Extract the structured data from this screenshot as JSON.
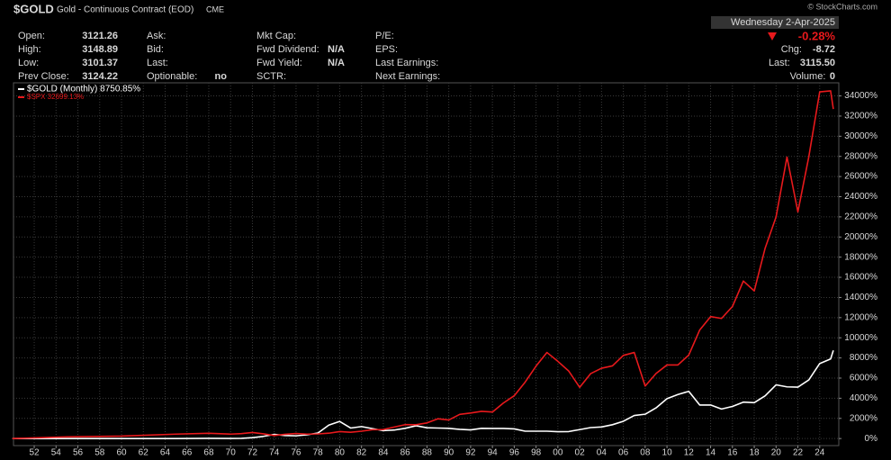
{
  "header": {
    "symbol": "$GOLD",
    "description": "Gold - Continuous Contract (EOD)",
    "exchange": "CME",
    "watermark": "© StockCharts.com",
    "date": "Wednesday  2-Apr-2025",
    "change_pct": "-0.28%",
    "columns": [
      [
        {
          "label": "Open:",
          "value": "3121.26"
        },
        {
          "label": "High:",
          "value": "3148.89"
        },
        {
          "label": "Low:",
          "value": "3101.37"
        },
        {
          "label": "Prev Close:",
          "value": "3124.22"
        }
      ],
      [
        {
          "label": "Ask:"
        },
        {
          "label": "Bid:"
        },
        {
          "label": "Last:"
        },
        {
          "label": "Optionable:",
          "value": "no"
        }
      ],
      [
        {
          "label": "Mkt Cap:"
        },
        {
          "label": "Fwd Dividend:",
          "value": "N/A"
        },
        {
          "label": "Fwd Yield:",
          "value": "N/A"
        },
        {
          "label": "SCTR:"
        }
      ],
      [
        {
          "label": "P/E:"
        },
        {
          "label": "EPS:"
        },
        {
          "label": "Last Earnings:"
        },
        {
          "label": "Next Earnings:"
        }
      ]
    ],
    "right": [
      {
        "label": "Chg:",
        "value": "-8.72"
      },
      {
        "label": "Last:",
        "value": "3115.50"
      },
      {
        "label": "Volume:",
        "value": "0"
      }
    ]
  },
  "chart_data": {
    "type": "line",
    "x": [
      1950,
      1955,
      1960,
      1965,
      1968,
      1970,
      1971,
      1972,
      1973,
      1974,
      1975,
      1976,
      1977,
      1978,
      1979,
      1980,
      1981,
      1982,
      1983,
      1984,
      1985,
      1986,
      1987,
      1988,
      1989,
      1990,
      1991,
      1992,
      1993,
      1994,
      1995,
      1996,
      1997,
      1998,
      1999,
      2000,
      2001,
      2002,
      2003,
      2004,
      2005,
      2006,
      2007,
      2008,
      2009,
      2010,
      2011,
      2012,
      2013,
      2014,
      2015,
      2016,
      2017,
      2018,
      2019,
      2020,
      2021,
      2022,
      2023,
      2024,
      2025,
      2025.25
    ],
    "series": [
      {
        "name": "$GOLD (Monthly) 8750.85%",
        "color": "#ffffff",
        "values": [
          0,
          0,
          0,
          0,
          20,
          5,
          20,
          86,
          214,
          414,
          300,
          271,
          371,
          543,
          1330,
          1700,
          1043,
          1186,
          986,
          786,
          843,
          1014,
          1271,
          1071,
          1043,
          1014,
          914,
          857,
          1014,
          1000,
          1000,
          957,
          729,
          729,
          729,
          677,
          694,
          886,
          1086,
          1151,
          1371,
          1714,
          2286,
          2414,
          3043,
          3957,
          4371,
          4686,
          3329,
          3329,
          2929,
          3186,
          3614,
          3557,
          4243,
          5329,
          5129,
          5100,
          5814,
          7443,
          7900,
          8750.85
        ]
      },
      {
        "name": "$SPX 32699.13%",
        "color": "#e8191c",
        "values": [
          0,
          165,
          240,
          440,
          520,
          440,
          490,
          600,
          470,
          300,
          420,
          500,
          440,
          460,
          530,
          690,
          620,
          730,
          880,
          890,
          1140,
          1380,
          1370,
          1550,
          1960,
          1840,
          2400,
          2530,
          2700,
          2630,
          3520,
          4250,
          5600,
          7190,
          8540,
          7660,
          6690,
          5080,
          6440,
          6980,
          7210,
          8250,
          8540,
          5210,
          6460,
          7300,
          7300,
          8290,
          10770,
          12100,
          11920,
          13100,
          15630,
          14650,
          18900,
          21990,
          27930,
          22490,
          27960,
          34400,
          34500,
          32699.13
        ]
      }
    ],
    "xlim": [
      1950.1,
      2025.75
    ],
    "xticks": [
      {
        "value": 1952,
        "label": "52"
      },
      {
        "value": 1954,
        "label": "54"
      },
      {
        "value": 1956,
        "label": "56"
      },
      {
        "value": 1958,
        "label": "58"
      },
      {
        "value": 1960,
        "label": "60"
      },
      {
        "value": 1962,
        "label": "62"
      },
      {
        "value": 1964,
        "label": "64"
      },
      {
        "value": 1966,
        "label": "66"
      },
      {
        "value": 1968,
        "label": "68"
      },
      {
        "value": 1970,
        "label": "70"
      },
      {
        "value": 1972,
        "label": "72"
      },
      {
        "value": 1974,
        "label": "74"
      },
      {
        "value": 1976,
        "label": "76"
      },
      {
        "value": 1978,
        "label": "78"
      },
      {
        "value": 1980,
        "label": "80"
      },
      {
        "value": 1982,
        "label": "82"
      },
      {
        "value": 1984,
        "label": "84"
      },
      {
        "value": 1986,
        "label": "86"
      },
      {
        "value": 1988,
        "label": "88"
      },
      {
        "value": 1990,
        "label": "90"
      },
      {
        "value": 1992,
        "label": "92"
      },
      {
        "value": 1994,
        "label": "94"
      },
      {
        "value": 1996,
        "label": "96"
      },
      {
        "value": 1998,
        "label": "98"
      },
      {
        "value": 2000,
        "label": "00"
      },
      {
        "value": 2002,
        "label": "02"
      },
      {
        "value": 2004,
        "label": "04"
      },
      {
        "value": 2006,
        "label": "06"
      },
      {
        "value": 2008,
        "label": "08"
      },
      {
        "value": 2010,
        "label": "10"
      },
      {
        "value": 2012,
        "label": "12"
      },
      {
        "value": 2014,
        "label": "14"
      },
      {
        "value": 2016,
        "label": "16"
      },
      {
        "value": 2018,
        "label": "18"
      },
      {
        "value": 2020,
        "label": "20"
      },
      {
        "value": 2022,
        "label": "22"
      },
      {
        "value": 2024,
        "label": "24"
      }
    ],
    "ylim": [
      -700,
      35300
    ],
    "yticks": [
      {
        "value": 0,
        "label": "0%"
      },
      {
        "value": 2000,
        "label": "2000%"
      },
      {
        "value": 4000,
        "label": "4000%"
      },
      {
        "value": 6000,
        "label": "6000%"
      },
      {
        "value": 8000,
        "label": "8000%"
      },
      {
        "value": 10000,
        "label": "10000%"
      },
      {
        "value": 12000,
        "label": "12000%"
      },
      {
        "value": 14000,
        "label": "14000%"
      },
      {
        "value": 16000,
        "label": "16000%"
      },
      {
        "value": 18000,
        "label": "18000%"
      },
      {
        "value": 20000,
        "label": "20000%"
      },
      {
        "value": 22000,
        "label": "22000%"
      },
      {
        "value": 24000,
        "label": "24000%"
      },
      {
        "value": 26000,
        "label": "26000%"
      },
      {
        "value": 28000,
        "label": "28000%"
      },
      {
        "value": 30000,
        "label": "30000%"
      },
      {
        "value": 32000,
        "label": "32000%"
      },
      {
        "value": 34000,
        "label": "34000%"
      }
    ],
    "grid": true
  }
}
